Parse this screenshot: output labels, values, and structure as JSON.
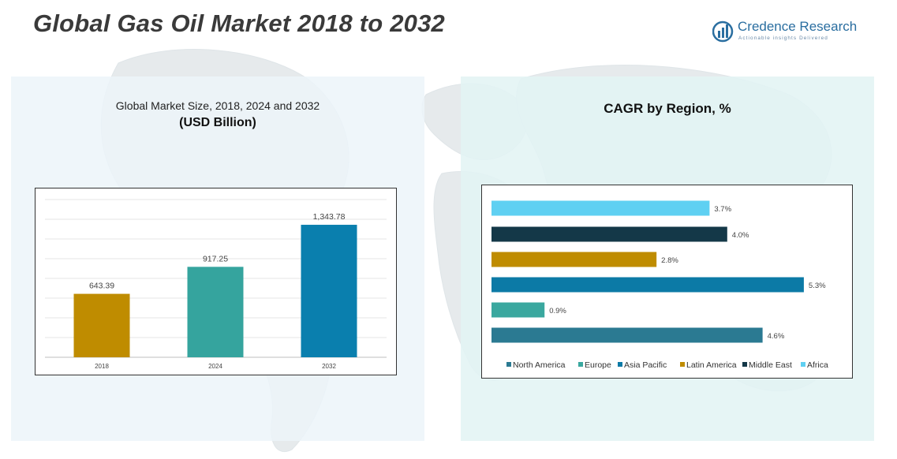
{
  "header": {
    "title": "Global Gas Oil Market 2018 to 2032"
  },
  "logo": {
    "name": "Credence Research",
    "tagline": "Actionable insights Delivered"
  },
  "left_panel": {
    "subtitle": "Global Market Size, 2018, 2024 and 2032",
    "unit": "(USD Billion)"
  },
  "right_panel": {
    "title": "CAGR by Region, %"
  },
  "colors": {
    "bar_2018": "#bf8c00",
    "bar_2024": "#35a49e",
    "bar_2032": "#0a7fae",
    "north_america": "#2b7a92",
    "europe": "#3aa89f",
    "asia_pacific": "#0c7aa6",
    "latin_america": "#bf8c00",
    "middle_east": "#143848",
    "africa": "#5fd0f2"
  },
  "chart_data": [
    {
      "type": "bar",
      "title": "Global Market Size, 2018, 2024 and 2032",
      "ylabel": "USD Billion",
      "categories": [
        "2018",
        "2024",
        "2032"
      ],
      "values": [
        643.39,
        917.25,
        1343.78
      ],
      "value_labels": [
        "643.39",
        "917.25",
        "1,343.78"
      ],
      "ylim": [
        0,
        1600
      ],
      "grid": true
    },
    {
      "type": "bar",
      "orientation": "horizontal",
      "title": "CAGR by Region, %",
      "categories": [
        "North America",
        "Europe",
        "Asia Pacific",
        "Latin America",
        "Middle East",
        "Africa"
      ],
      "values": [
        4.6,
        0.9,
        5.3,
        2.8,
        4.0,
        3.7
      ],
      "value_labels": [
        "4.6%",
        "0.9%",
        "5.3%",
        "2.8%",
        "4.0%",
        "3.7%"
      ],
      "legend": [
        "North America",
        "Europe",
        "Asia Pacific",
        "Latin America",
        "Middle East",
        "Africa"
      ],
      "legend_position": "bottom"
    }
  ]
}
